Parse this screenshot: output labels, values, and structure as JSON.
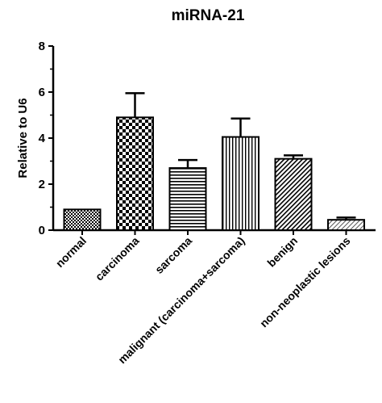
{
  "chart_data": {
    "type": "bar",
    "title": "miRNA-21",
    "xlabel": "",
    "ylabel": "Relative to U6",
    "ylim": [
      0,
      8
    ],
    "yticks": [
      0,
      2,
      4,
      6,
      8
    ],
    "grid": false,
    "categories": [
      "normal",
      "carcinoma",
      "sarcoma",
      "malignant (carcinoma+sarcoma)",
      "benign",
      "non-neoplastic lesions"
    ],
    "values": [
      0.9,
      4.9,
      2.7,
      4.05,
      3.1,
      0.45
    ],
    "error_upper": [
      0.0,
      1.05,
      0.35,
      0.8,
      0.15,
      0.1
    ],
    "fill_patterns": [
      "dense-check",
      "checker",
      "horizontal-lines",
      "vertical-lines",
      "diagonal-hatch",
      "diagonal-hatch-light"
    ]
  }
}
